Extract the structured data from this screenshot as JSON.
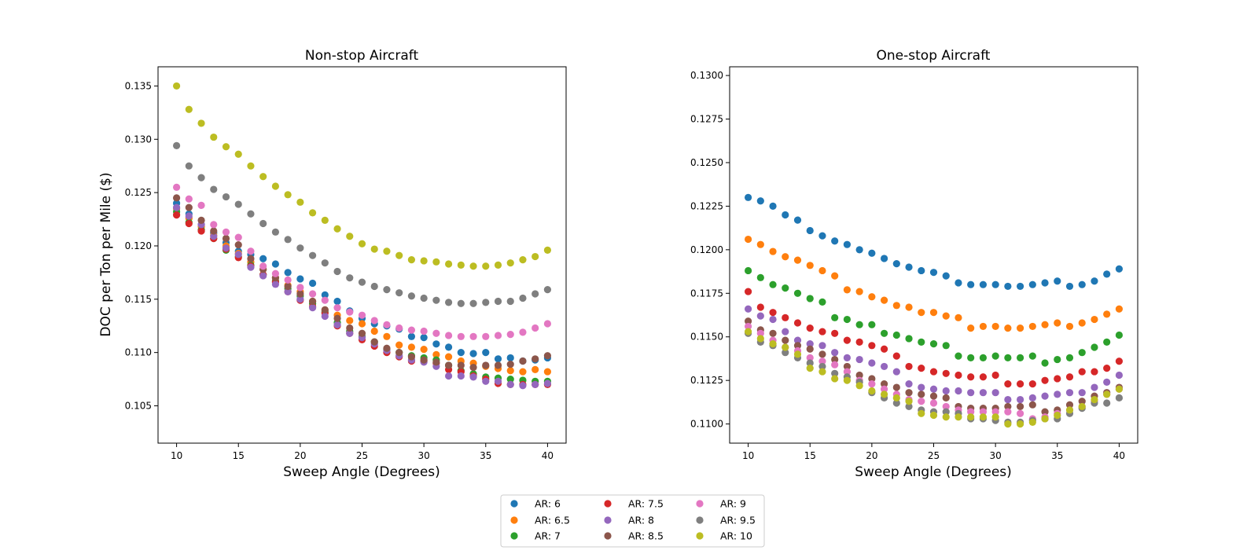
{
  "figure": {
    "background": "#ffffff",
    "series_colors": {
      "AR: 6": "#1f77b4",
      "AR: 6.5": "#ff7f0e",
      "AR: 7": "#2ca02c",
      "AR: 7.5": "#d62728",
      "AR: 8": "#9467bd",
      "AR: 8.5": "#8c564b",
      "AR: 9": "#e377c2",
      "AR: 9.5": "#7f7f7f",
      "AR: 10": "#bcbd22"
    }
  },
  "legend": {
    "placement": "bottom-center",
    "columns": 3,
    "items": [
      "AR: 6",
      "AR: 6.5",
      "AR: 7",
      "AR: 7.5",
      "AR: 8",
      "AR: 8.5",
      "AR: 9",
      "AR: 9.5",
      "AR: 10"
    ]
  },
  "chart_data": [
    {
      "type": "scatter",
      "title": "Non-stop Aircraft",
      "xlabel": "Sweep Angle (Degrees)",
      "ylabel": "DOC per Ton per Mile ($)",
      "xlim": [
        8.5,
        41.5
      ],
      "ylim": [
        0.1015,
        0.1368
      ],
      "xticks": [
        10,
        15,
        20,
        25,
        30,
        35,
        40
      ],
      "yticks": [
        0.105,
        0.11,
        0.115,
        0.12,
        0.125,
        0.13,
        0.135
      ],
      "ytick_labels": [
        "0.105",
        "0.110",
        "0.115",
        "0.120",
        "0.125",
        "0.130",
        "0.135"
      ],
      "grid": false,
      "x": [
        10,
        11,
        12,
        13,
        14,
        15,
        16,
        17,
        18,
        19,
        20,
        21,
        22,
        23,
        24,
        25,
        26,
        27,
        28,
        29,
        30,
        31,
        32,
        33,
        34,
        35,
        36,
        37,
        38,
        39,
        40
      ],
      "series": [
        {
          "name": "AR: 6",
          "values": [
            0.124,
            0.123,
            0.122,
            0.1212,
            0.1203,
            0.1195,
            0.1192,
            0.1188,
            0.1183,
            0.1175,
            0.1169,
            0.1165,
            0.1154,
            0.1148,
            0.1139,
            0.1132,
            0.1127,
            0.1125,
            0.1122,
            0.1115,
            0.1114,
            0.1108,
            0.1105,
            0.11,
            0.1099,
            0.11,
            0.1094,
            0.1095,
            0.1092,
            0.1093,
            0.1095
          ]
        },
        {
          "name": "AR: 6.5",
          "values": [
            0.1235,
            0.1226,
            0.1218,
            0.121,
            0.12,
            0.1193,
            0.1185,
            0.1178,
            0.117,
            0.1163,
            0.1157,
            0.1148,
            0.114,
            0.1135,
            0.113,
            0.1127,
            0.112,
            0.1115,
            0.1107,
            0.1105,
            0.1103,
            0.1098,
            0.1096,
            0.1092,
            0.109,
            0.1087,
            0.1085,
            0.1083,
            0.1082,
            0.1084,
            0.1082
          ]
        },
        {
          "name": "AR: 7",
          "values": [
            0.1232,
            0.1222,
            0.1215,
            0.1207,
            0.1196,
            0.119,
            0.1182,
            0.1173,
            0.1167,
            0.116,
            0.1153,
            0.1146,
            0.1138,
            0.1128,
            0.112,
            0.1115,
            0.111,
            0.1103,
            0.11,
            0.1097,
            0.1095,
            0.1093,
            0.1088,
            0.1083,
            0.108,
            0.1077,
            0.1076,
            0.1075,
            0.1074,
            0.1073,
            0.1073
          ]
        },
        {
          "name": "AR: 7.5",
          "values": [
            0.1229,
            0.1221,
            0.1214,
            0.1207,
            0.1197,
            0.1189,
            0.1181,
            0.1173,
            0.1166,
            0.1157,
            0.1149,
            0.1143,
            0.1137,
            0.1125,
            0.1118,
            0.1112,
            0.1106,
            0.11,
            0.1096,
            0.1092,
            0.1092,
            0.109,
            0.1084,
            0.1082,
            0.1078,
            0.1075,
            0.1071,
            0.107,
            0.107,
            0.107,
            0.107
          ]
        },
        {
          "name": "AR: 8",
          "values": [
            0.1236,
            0.1228,
            0.122,
            0.1209,
            0.1198,
            0.1192,
            0.118,
            0.1172,
            0.1164,
            0.1157,
            0.115,
            0.1142,
            0.1134,
            0.1126,
            0.1118,
            0.1114,
            0.1108,
            0.1102,
            0.1097,
            0.1093,
            0.1091,
            0.1087,
            0.1078,
            0.1078,
            0.1077,
            0.1073,
            0.1073,
            0.107,
            0.1069,
            0.107,
            0.1071
          ]
        },
        {
          "name": "AR: 8.5",
          "values": [
            0.1245,
            0.1236,
            0.1224,
            0.1214,
            0.1207,
            0.1201,
            0.1188,
            0.1178,
            0.117,
            0.1162,
            0.1155,
            0.1148,
            0.114,
            0.1132,
            0.1123,
            0.1118,
            0.111,
            0.1104,
            0.11,
            0.1096,
            0.1093,
            0.1091,
            0.1088,
            0.1088,
            0.1086,
            0.1088,
            0.1088,
            0.1089,
            0.1092,
            0.1094,
            0.1097
          ]
        },
        {
          "name": "AR: 9",
          "values": [
            0.1255,
            0.1244,
            0.1238,
            0.122,
            0.1213,
            0.1208,
            0.1195,
            0.1181,
            0.1174,
            0.1168,
            0.1161,
            0.1155,
            0.1149,
            0.1142,
            0.1138,
            0.1135,
            0.113,
            0.1126,
            0.1123,
            0.1121,
            0.112,
            0.1118,
            0.1116,
            0.1115,
            0.1115,
            0.1115,
            0.1116,
            0.1117,
            0.1119,
            0.1123,
            0.1127
          ]
        },
        {
          "name": "AR: 9.5",
          "values": [
            0.1294,
            0.1275,
            0.1264,
            0.1253,
            0.1246,
            0.1239,
            0.123,
            0.1221,
            0.1213,
            0.1206,
            0.1198,
            0.1191,
            0.1184,
            0.1176,
            0.117,
            0.1166,
            0.1162,
            0.1159,
            0.1156,
            0.1153,
            0.1151,
            0.1149,
            0.1147,
            0.1146,
            0.1146,
            0.1147,
            0.1148,
            0.1148,
            0.1151,
            0.1155,
            0.1159
          ]
        },
        {
          "name": "AR: 10",
          "values": [
            0.135,
            0.1328,
            0.1315,
            0.1302,
            0.1293,
            0.1286,
            0.1275,
            0.1265,
            0.1256,
            0.1248,
            0.1241,
            0.1231,
            0.1224,
            0.1216,
            0.1209,
            0.1202,
            0.1197,
            0.1195,
            0.1191,
            0.1187,
            0.1186,
            0.1185,
            0.1183,
            0.1182,
            0.1181,
            0.1181,
            0.1182,
            0.1184,
            0.1187,
            0.119,
            0.1196
          ]
        }
      ]
    },
    {
      "type": "scatter",
      "title": "One-stop Aircraft",
      "xlabel": "Sweep Angle (Degrees)",
      "ylabel": "",
      "xlim": [
        8.5,
        41.5
      ],
      "ylim": [
        0.1089,
        0.1305
      ],
      "xticks": [
        10,
        15,
        20,
        25,
        30,
        35,
        40
      ],
      "yticks": [
        0.11,
        0.1125,
        0.115,
        0.1175,
        0.12,
        0.1225,
        0.125,
        0.1275,
        0.13
      ],
      "ytick_labels": [
        "0.1100",
        "0.1125",
        "0.1150",
        "0.1175",
        "0.1200",
        "0.1225",
        "0.1250",
        "0.1275",
        "0.1300"
      ],
      "grid": false,
      "x": [
        10,
        11,
        12,
        13,
        14,
        15,
        16,
        17,
        18,
        19,
        20,
        21,
        22,
        23,
        24,
        25,
        26,
        27,
        28,
        29,
        30,
        31,
        32,
        33,
        34,
        35,
        36,
        37,
        38,
        39,
        40
      ],
      "series": [
        {
          "name": "AR: 6",
          "values": [
            0.123,
            0.1228,
            0.1225,
            0.122,
            0.1217,
            0.1211,
            0.1208,
            0.1205,
            0.1203,
            0.12,
            0.1198,
            0.1195,
            0.1192,
            0.119,
            0.1188,
            0.1187,
            0.1185,
            0.1181,
            0.118,
            0.118,
            0.118,
            0.1179,
            0.1179,
            0.118,
            0.1181,
            0.1182,
            0.1179,
            0.118,
            0.1182,
            0.1186,
            0.1189
          ]
        },
        {
          "name": "AR: 6.5",
          "values": [
            0.1206,
            0.1203,
            0.1199,
            0.1196,
            0.1194,
            0.1191,
            0.1188,
            0.1185,
            0.1177,
            0.1176,
            0.1173,
            0.1171,
            0.1168,
            0.1167,
            0.1164,
            0.1164,
            0.1162,
            0.1161,
            0.1155,
            0.1156,
            0.1156,
            0.1155,
            0.1155,
            0.1156,
            0.1157,
            0.1158,
            0.1156,
            0.1158,
            0.116,
            0.1163,
            0.1166
          ]
        },
        {
          "name": "AR: 7",
          "values": [
            0.1188,
            0.1184,
            0.118,
            0.1178,
            0.1175,
            0.1172,
            0.117,
            0.1161,
            0.116,
            0.1157,
            0.1157,
            0.1152,
            0.1151,
            0.1149,
            0.1147,
            0.1146,
            0.1145,
            0.1139,
            0.1138,
            0.1138,
            0.1139,
            0.1138,
            0.1138,
            0.1139,
            0.1135,
            0.1137,
            0.1138,
            0.1141,
            0.1144,
            0.1147,
            0.1151
          ]
        },
        {
          "name": "AR: 7.5",
          "values": [
            0.1176,
            0.1167,
            0.1164,
            0.1161,
            0.1158,
            0.1155,
            0.1153,
            0.1152,
            0.1148,
            0.1147,
            0.1145,
            0.1143,
            0.1139,
            0.1133,
            0.1132,
            0.113,
            0.1129,
            0.1128,
            0.1127,
            0.1127,
            0.1128,
            0.1123,
            0.1123,
            0.1123,
            0.1125,
            0.1126,
            0.1127,
            0.113,
            0.113,
            0.1132,
            0.1136
          ]
        },
        {
          "name": "AR: 8",
          "values": [
            0.1166,
            0.1162,
            0.116,
            0.1153,
            0.1148,
            0.1146,
            0.1145,
            0.1141,
            0.1138,
            0.1137,
            0.1135,
            0.1133,
            0.113,
            0.1123,
            0.1121,
            0.112,
            0.1119,
            0.1119,
            0.1118,
            0.1118,
            0.1118,
            0.1114,
            0.1114,
            0.1115,
            0.1116,
            0.1117,
            0.1118,
            0.1118,
            0.1121,
            0.1124,
            0.1128
          ]
        },
        {
          "name": "AR: 8.5",
          "values": [
            0.1159,
            0.1154,
            0.1152,
            0.1148,
            0.1145,
            0.1143,
            0.114,
            0.1137,
            0.1133,
            0.1128,
            0.1126,
            0.1123,
            0.1121,
            0.1118,
            0.1117,
            0.1116,
            0.1115,
            0.111,
            0.1109,
            0.1109,
            0.1109,
            0.111,
            0.111,
            0.1111,
            0.1107,
            0.1108,
            0.1111,
            0.1113,
            0.1116,
            0.1118,
            0.1121
          ]
        },
        {
          "name": "AR: 9",
          "values": [
            0.1156,
            0.1152,
            0.1148,
            0.1144,
            0.1142,
            0.1138,
            0.1136,
            0.1134,
            0.113,
            0.1125,
            0.1123,
            0.112,
            0.1117,
            0.1114,
            0.1113,
            0.1112,
            0.111,
            0.1108,
            0.1107,
            0.1107,
            0.1107,
            0.1107,
            0.1106,
            0.1103,
            0.1104,
            0.1106,
            0.1108,
            0.111,
            0.1113,
            0.1117,
            0.112
          ]
        },
        {
          "name": "AR: 9.5",
          "values": [
            0.1152,
            0.1147,
            0.1145,
            0.1141,
            0.1138,
            0.1135,
            0.1133,
            0.1129,
            0.1127,
            0.1124,
            0.1118,
            0.1115,
            0.1112,
            0.111,
            0.1108,
            0.1107,
            0.1107,
            0.1106,
            0.1103,
            0.1103,
            0.1102,
            0.1101,
            0.1101,
            0.1102,
            0.1103,
            0.1103,
            0.1106,
            0.1109,
            0.1112,
            0.1112,
            0.1115
          ]
        },
        {
          "name": "AR: 10",
          "values": [
            0.1153,
            0.1149,
            0.1146,
            0.1144,
            0.114,
            0.1132,
            0.113,
            0.1126,
            0.1125,
            0.1122,
            0.1119,
            0.1117,
            0.1115,
            0.1113,
            0.1106,
            0.1105,
            0.1104,
            0.1104,
            0.1104,
            0.1104,
            0.1104,
            0.11,
            0.11,
            0.1101,
            0.1103,
            0.1105,
            0.1108,
            0.111,
            0.1114,
            0.1117,
            0.112
          ]
        }
      ]
    }
  ]
}
